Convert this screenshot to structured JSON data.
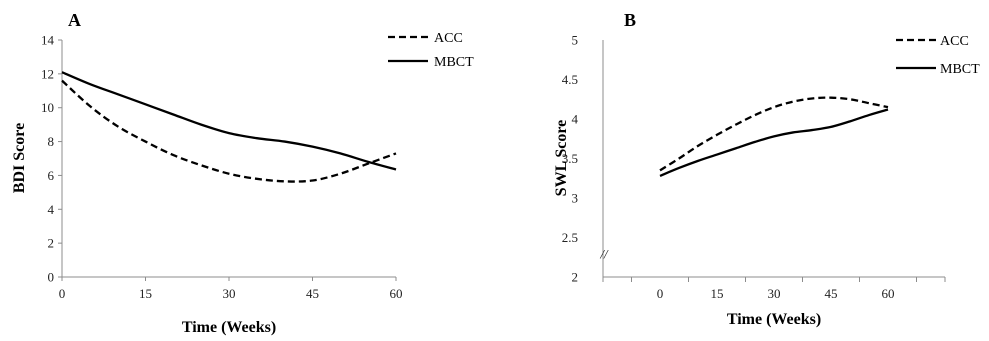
{
  "chart_data": [
    {
      "type": "line",
      "panel_label": "A",
      "title": "",
      "xlabel": "Time (Weeks)",
      "ylabel": "BDI Score",
      "xlim": [
        0,
        60
      ],
      "ylim": [
        0,
        14
      ],
      "x_ticks": [
        0,
        15,
        30,
        45,
        60
      ],
      "y_ticks": [
        0,
        2,
        4,
        6,
        8,
        10,
        12,
        14
      ],
      "y_tick_labels": [
        "0",
        "2",
        "4",
        "6",
        "8",
        "10",
        "12",
        "14"
      ],
      "grid": false,
      "legend_position": "top-right",
      "series": [
        {
          "name": "ACC",
          "style": "dashed",
          "color": "#000000",
          "x": [
            0,
            5,
            10,
            15,
            20,
            25,
            30,
            35,
            40,
            45,
            50,
            55,
            60
          ],
          "y": [
            11.6,
            10.1,
            8.9,
            8.0,
            7.2,
            6.6,
            6.1,
            5.8,
            5.65,
            5.7,
            6.1,
            6.7,
            7.3
          ]
        },
        {
          "name": "MBCT",
          "style": "solid",
          "color": "#000000",
          "x": [
            0,
            5,
            10,
            15,
            20,
            25,
            30,
            35,
            40,
            45,
            50,
            55,
            60
          ],
          "y": [
            12.1,
            11.4,
            10.8,
            10.2,
            9.6,
            9.0,
            8.5,
            8.2,
            8.0,
            7.7,
            7.3,
            6.8,
            6.35
          ]
        }
      ]
    },
    {
      "type": "line",
      "panel_label": "B",
      "title": "",
      "xlabel": "Time (Weeks)",
      "ylabel": "SWL Score",
      "xlim": [
        -15,
        75
      ],
      "ylim": [
        2,
        5
      ],
      "x_ticks": [
        0,
        15,
        30,
        45,
        60
      ],
      "y_ticks": [
        2,
        2.5,
        3,
        3.5,
        4,
        4.5,
        5
      ],
      "y_tick_labels": [
        "2",
        "2.5",
        "3",
        "3.5",
        "4",
        "4.5",
        "5"
      ],
      "axis_break_symbol": "//",
      "grid": false,
      "legend_position": "top-right",
      "series": [
        {
          "name": "ACC",
          "style": "dashed",
          "color": "#000000",
          "x": [
            0,
            5,
            10,
            15,
            20,
            25,
            30,
            35,
            40,
            45,
            50,
            55,
            60
          ],
          "y": [
            3.35,
            3.5,
            3.66,
            3.8,
            3.93,
            4.05,
            4.15,
            4.22,
            4.26,
            4.27,
            4.25,
            4.2,
            4.15
          ]
        },
        {
          "name": "MBCT",
          "style": "solid",
          "color": "#000000",
          "x": [
            0,
            5,
            10,
            15,
            20,
            25,
            30,
            35,
            40,
            45,
            50,
            55,
            60
          ],
          "y": [
            3.28,
            3.38,
            3.47,
            3.55,
            3.63,
            3.71,
            3.78,
            3.83,
            3.86,
            3.9,
            3.97,
            4.05,
            4.12
          ]
        }
      ]
    }
  ]
}
